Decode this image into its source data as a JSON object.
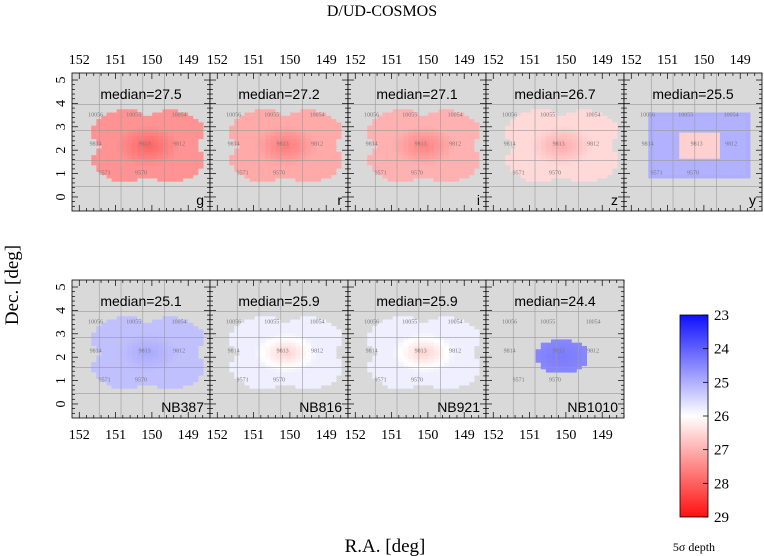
{
  "chart_data": {
    "type": "heatmap",
    "title": "D/UD-COSMOS",
    "xlabel": "R.A. [deg]",
    "ylabel": "Dec. [deg]",
    "xlim": [
      152.2,
      148.4
    ],
    "ylim": [
      -0.6,
      5.3
    ],
    "x_ticks": [
      "152",
      "151",
      "150",
      "149"
    ],
    "y_ticks": [
      "0",
      "1",
      "2",
      "3",
      "4",
      "5"
    ],
    "colorbar": {
      "label": "5σ depth",
      "ticks": [
        "23",
        "24",
        "25",
        "26",
        "27",
        "28",
        "29"
      ],
      "range": [
        23,
        29
      ],
      "colors": {
        "low": "#1a1aff",
        "mid": "#ffffff",
        "high": "#ff1a1a"
      }
    },
    "patch_labels": [
      "10056",
      "10055",
      "10054",
      "9814",
      "9813",
      "9812",
      "9571",
      "9570"
    ],
    "panels": [
      {
        "band": "g",
        "median_label": "median=27.5",
        "median": 27.5,
        "depth_center": 28.0,
        "depth_edge": 27.4,
        "shape": "clover"
      },
      {
        "band": "r",
        "median_label": "median=27.2",
        "median": 27.2,
        "depth_center": 27.7,
        "depth_edge": 27.1,
        "shape": "clover"
      },
      {
        "band": "i",
        "median_label": "median=27.1",
        "median": 27.1,
        "depth_center": 27.6,
        "depth_edge": 27.0,
        "shape": "clover"
      },
      {
        "band": "z",
        "median_label": "median=26.7",
        "median": 26.7,
        "depth_center": 27.1,
        "depth_edge": 26.5,
        "shape": "clover"
      },
      {
        "band": "y",
        "median_label": "median=25.5",
        "median": 25.5,
        "depth_center": 26.6,
        "depth_edge": 25.0,
        "shape": "square"
      },
      {
        "band": "NB387",
        "median_label": "median=25.1",
        "median": 25.1,
        "depth_center": 24.9,
        "depth_edge": 25.2,
        "shape": "clover"
      },
      {
        "band": "NB816",
        "median_label": "median=25.9",
        "median": 25.9,
        "depth_center": 26.6,
        "depth_edge": 25.8,
        "shape": "clover"
      },
      {
        "band": "NB921",
        "median_label": "median=25.9",
        "median": 25.9,
        "depth_center": 26.6,
        "depth_edge": 25.8,
        "shape": "clover"
      },
      {
        "band": "NB1010",
        "median_label": "median=24.4",
        "median": 24.4,
        "depth_center": 24.3,
        "depth_edge": 24.5,
        "shape": "disk"
      }
    ]
  }
}
